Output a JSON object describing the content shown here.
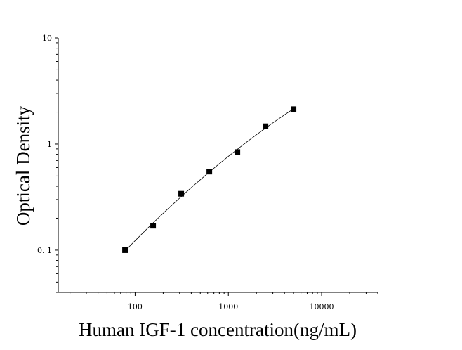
{
  "chart_data": {
    "type": "scatter",
    "title": "",
    "xlabel": "Human IGF-1 concentration(ng/mL)",
    "ylabel": "Optical Density",
    "xscale": "log",
    "yscale": "log",
    "xlim": [
      15,
      40000
    ],
    "ylim": [
      0.04,
      10
    ],
    "grid": false,
    "legend": "none",
    "x_ticks": [
      {
        "value": 100,
        "label": "100"
      },
      {
        "value": 1000,
        "label": "1000"
      },
      {
        "value": 10000,
        "label": "10000"
      }
    ],
    "y_ticks": [
      {
        "value": 0.1,
        "label": "0. 1"
      },
      {
        "value": 1,
        "label": "1"
      },
      {
        "value": 10,
        "label": "10"
      }
    ],
    "series": [
      {
        "x": [
          78,
          156,
          312,
          625,
          1250,
          2500,
          5000
        ],
        "y": [
          0.1,
          0.17,
          0.34,
          0.55,
          0.84,
          1.47,
          2.13
        ],
        "marker": "square",
        "color": "#000000",
        "fit_line": true
      }
    ]
  }
}
